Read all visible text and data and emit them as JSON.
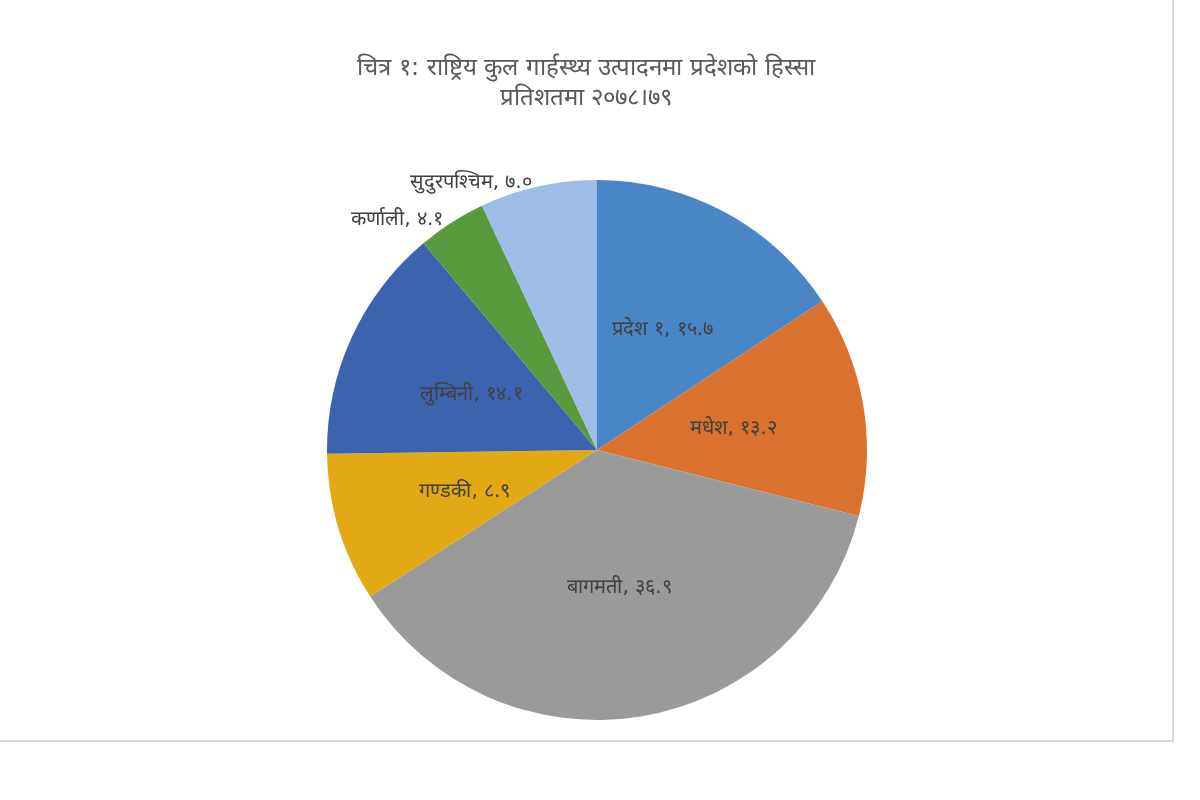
{
  "chart_data": {
    "type": "pie",
    "title": "चित्र १: राष्ट्रिय कुल गार्हस्थ्य उत्पादनमा प्रदेशको हिस्सा",
    "subtitle": "प्रतिशतमा २०७८।७९",
    "categories": [
      "प्रदेश १",
      "मधेश",
      "बागमती",
      "गण्डकी",
      "लुम्बिनी",
      "कर्णाली",
      "सुदुरपश्चिम"
    ],
    "values": [
      15.7,
      13.2,
      36.9,
      8.9,
      14.1,
      4.1,
      7.0
    ],
    "value_labels": [
      "१५.७",
      "१३.२",
      "३६.९",
      "८.९",
      "१४.१",
      "४.१",
      "७.०"
    ],
    "colors": [
      "#4a86c5",
      "#d9722e",
      "#9a9a9a",
      "#e3a915",
      "#3c64ae",
      "#5a9a3e",
      "#9dbde6"
    ]
  }
}
